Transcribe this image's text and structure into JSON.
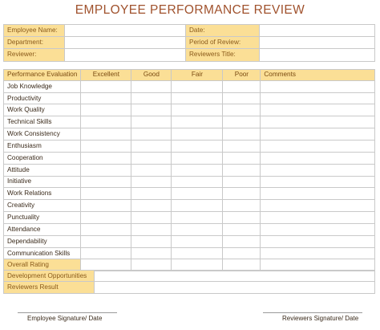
{
  "title": "EMPLOYEE PERFORMANCE REVIEW",
  "info": {
    "rows": [
      {
        "left_label": "Employee Name:",
        "right_label": "Date:"
      },
      {
        "left_label": "Department:",
        "right_label": "Period of Review:"
      },
      {
        "left_label": "Reviewer:",
        "right_label": "Reviewers Title:"
      }
    ]
  },
  "evaluation": {
    "headers": [
      "Performance Evaluation",
      "Excellent",
      "Good",
      "Fair",
      "Poor",
      "Comments"
    ],
    "criteria": [
      "Job Knowledge",
      "Productivity",
      "Work Quality",
      "Technical Skills",
      "Work Consistency",
      "Enthusiasm",
      "Cooperation",
      "Attitude",
      "Initiative",
      "Work Relations",
      "Creativity",
      "Punctuality",
      "Attendance",
      "Dependability",
      "Communication Skills"
    ],
    "overall_label": "Overall Rating"
  },
  "development": {
    "rows": [
      "Development Opportunities",
      "Reviewers Result"
    ]
  },
  "signatures": {
    "employee": "Employee Signature/ Date",
    "reviewer": "Reviewers Signature/ Date"
  },
  "colors": {
    "header_fill": "#fbdf96",
    "title_color": "#a0522d",
    "border": "#c9c9c9"
  }
}
